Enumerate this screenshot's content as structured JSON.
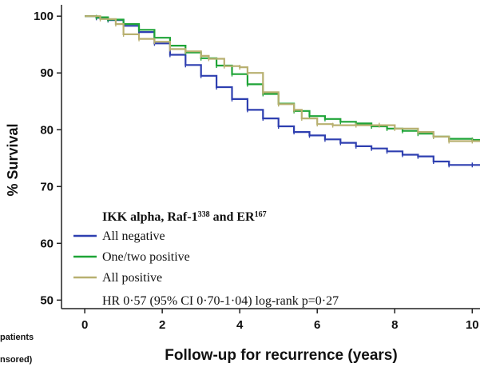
{
  "chart_data": {
    "type": "line",
    "title": "",
    "xlabel": "Follow-up for recurrence (years)",
    "ylabel": "% Survival",
    "xlim": [
      -0.6,
      10.2
    ],
    "ylim": [
      48.5,
      102
    ],
    "xticks": [
      0,
      2,
      4,
      6,
      8,
      10
    ],
    "yticks": [
      50,
      60,
      70,
      80,
      90,
      100
    ],
    "xtick_labels": [
      "0",
      "2",
      "4",
      "6",
      "8",
      "10"
    ],
    "ytick_labels": [
      "50",
      "60",
      "70",
      "80",
      "90",
      "100"
    ],
    "grid": false,
    "legend": {
      "placement": "bottom-left",
      "title": "IKK alpha, Raf-1",
      "title_sup1": "338",
      "title_mid": " and ER",
      "title_sup2": "167",
      "note": "HR 0·57 (95% CI 0·70-1·04) log-rank p=0·27"
    },
    "series": [
      {
        "name": "All negative",
        "color": "#2e3fb0",
        "x": [
          0,
          0.3,
          0.6,
          1.0,
          1.4,
          1.8,
          2.2,
          2.6,
          3.0,
          3.4,
          3.8,
          4.2,
          4.6,
          5.0,
          5.4,
          5.8,
          6.2,
          6.6,
          7.0,
          7.4,
          7.8,
          8.2,
          8.6,
          9.0,
          9.4,
          10.0,
          10.2
        ],
        "y": [
          100,
          99.7,
          99.3,
          98.3,
          97.2,
          95.2,
          93.2,
          91.4,
          89.5,
          87.5,
          85.4,
          83.5,
          82.0,
          80.6,
          79.6,
          79.0,
          78.3,
          77.7,
          77.1,
          76.7,
          76.2,
          75.6,
          75.3,
          74.4,
          73.8,
          73.8,
          73.8
        ]
      },
      {
        "name": "One/two positive",
        "color": "#1ea437",
        "x": [
          0,
          0.3,
          0.6,
          1.0,
          1.4,
          1.8,
          2.2,
          2.6,
          3.0,
          3.4,
          3.8,
          4.2,
          4.6,
          5.0,
          5.4,
          5.8,
          6.2,
          6.6,
          7.0,
          7.4,
          7.8,
          8.2,
          8.6,
          9.0,
          9.4,
          10.0,
          10.2
        ],
        "y": [
          100,
          99.8,
          99.4,
          98.6,
          97.6,
          96.2,
          94.8,
          93.6,
          92.6,
          91.3,
          89.8,
          88.0,
          86.3,
          84.6,
          83.3,
          82.4,
          81.9,
          81.4,
          81.1,
          80.6,
          80.2,
          79.8,
          79.3,
          78.8,
          78.4,
          78.2,
          78.2
        ]
      },
      {
        "name": "All positive",
        "color": "#b8b070",
        "x": [
          0,
          0.4,
          0.8,
          1.0,
          1.4,
          1.8,
          2.2,
          2.6,
          3.0,
          3.2,
          3.6,
          4.0,
          4.2,
          4.6,
          5.0,
          5.4,
          5.6,
          6.0,
          6.4,
          7.0,
          7.6,
          8.0,
          8.6,
          9.0,
          9.4,
          10.0,
          10.2
        ],
        "y": [
          100,
          99.5,
          98.6,
          96.8,
          96.0,
          95.5,
          94.2,
          93.8,
          93.0,
          92.5,
          91.2,
          91.0,
          90.0,
          86.6,
          84.5,
          83.5,
          82.0,
          81.0,
          80.8,
          80.8,
          80.8,
          80.2,
          79.6,
          78.8,
          78.0,
          78.0,
          78.0
        ]
      }
    ]
  },
  "side_note": {
    "line1": "patients",
    "line2": "nsored)"
  }
}
